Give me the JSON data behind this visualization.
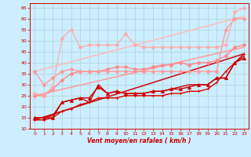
{
  "xlabel": "Vent moyen/en rafales ( km/h )",
  "xlim": [
    -0.5,
    23.5
  ],
  "ylim": [
    10,
    67
  ],
  "yticks": [
    10,
    15,
    20,
    25,
    30,
    35,
    40,
    45,
    50,
    55,
    60,
    65
  ],
  "xticks": [
    0,
    1,
    2,
    3,
    4,
    5,
    6,
    7,
    8,
    9,
    10,
    11,
    12,
    13,
    14,
    15,
    16,
    17,
    18,
    19,
    20,
    21,
    22,
    23
  ],
  "bg_color": "#cceeff",
  "grid_color": "#aacccc",
  "lines": [
    {
      "x": [
        0,
        23
      ],
      "y": [
        14,
        44
      ],
      "color": "#cc0000",
      "lw": 1.2,
      "marker": null,
      "ms": 0,
      "alpha": 0.9
    },
    {
      "x": [
        0,
        23
      ],
      "y": [
        25,
        47
      ],
      "color": "#ff9999",
      "lw": 1.2,
      "marker": null,
      "ms": 0,
      "alpha": 0.9
    },
    {
      "x": [
        0,
        23
      ],
      "y": [
        36,
        61
      ],
      "color": "#ffbbbb",
      "lw": 1.2,
      "marker": null,
      "ms": 0,
      "alpha": 0.9
    },
    {
      "x": [
        0,
        1,
        2,
        3,
        4,
        5,
        6,
        7,
        8,
        9,
        10,
        11,
        12,
        13,
        14,
        15,
        16,
        17,
        18,
        19,
        20,
        21,
        22,
        23
      ],
      "y": [
        14,
        14,
        15,
        18,
        19,
        21,
        22,
        24,
        24,
        24,
        25,
        25,
        25,
        25,
        25,
        26,
        26,
        27,
        27,
        28,
        31,
        36,
        40,
        44
      ],
      "color": "#dd0000",
      "lw": 1.0,
      "marker": "+",
      "ms": 3.5,
      "alpha": 1.0
    },
    {
      "x": [
        0,
        1,
        2,
        3,
        4,
        5,
        6,
        7,
        8,
        9,
        10,
        11,
        12,
        13,
        14,
        15,
        16,
        17,
        18,
        19,
        20,
        21,
        22,
        23
      ],
      "y": [
        15,
        15,
        15,
        22,
        23,
        24,
        24,
        29,
        26,
        27,
        26,
        26,
        26,
        27,
        27,
        28,
        28,
        29,
        30,
        30,
        33,
        33,
        40,
        42
      ],
      "color": "#cc0000",
      "lw": 1.0,
      "marker": "^",
      "ms": 3,
      "alpha": 1.0
    },
    {
      "x": [
        0,
        1,
        2,
        3,
        4,
        5,
        6,
        7,
        8,
        9,
        10,
        11,
        12,
        13,
        14,
        15,
        16,
        17,
        18,
        19,
        20,
        21,
        22,
        23
      ],
      "y": [
        15,
        15,
        16,
        22,
        23,
        24,
        22,
        30,
        26,
        27,
        26,
        26,
        26,
        27,
        27,
        28,
        29,
        30,
        30,
        30,
        33,
        33,
        40,
        43
      ],
      "color": "#cc0000",
      "lw": 1.0,
      "marker": null,
      "ms": 0,
      "alpha": 1.0
    },
    {
      "x": [
        0,
        1,
        2,
        3,
        4,
        5,
        6,
        7,
        8,
        9,
        10,
        11,
        12,
        13,
        14,
        15,
        16,
        17,
        18,
        19,
        20,
        21,
        22,
        23
      ],
      "y": [
        25,
        25,
        28,
        32,
        35,
        36,
        36,
        36,
        37,
        38,
        38,
        37,
        37,
        38,
        39,
        39,
        40,
        39,
        40,
        40,
        41,
        43,
        47,
        48
      ],
      "color": "#ff8888",
      "lw": 1.0,
      "marker": "D",
      "ms": 2.5,
      "alpha": 1.0
    },
    {
      "x": [
        0,
        1,
        2,
        3,
        4,
        5,
        6,
        7,
        8,
        9,
        10,
        11,
        12,
        13,
        14,
        15,
        16,
        17,
        18,
        19,
        20,
        21,
        22,
        23
      ],
      "y": [
        36,
        30,
        33,
        36,
        37,
        36,
        36,
        36,
        36,
        36,
        36,
        36,
        36,
        36,
        36,
        36,
        36,
        36,
        36,
        36,
        36,
        55,
        60,
        60
      ],
      "color": "#ff9999",
      "lw": 1.0,
      "marker": "D",
      "ms": 2.5,
      "alpha": 1.0
    },
    {
      "x": [
        0,
        1,
        2,
        3,
        4,
        5,
        6,
        7,
        8,
        9,
        10,
        11,
        12,
        13,
        14,
        15,
        16,
        17,
        18,
        19,
        20,
        21,
        22,
        23
      ],
      "y": [
        26,
        25,
        29,
        51,
        55,
        47,
        48,
        48,
        48,
        48,
        53,
        48,
        47,
        47,
        47,
        47,
        47,
        47,
        47,
        47,
        47,
        48,
        63,
        65
      ],
      "color": "#ffaaaa",
      "lw": 1.0,
      "marker": "D",
      "ms": 2.5,
      "alpha": 0.9
    }
  ]
}
